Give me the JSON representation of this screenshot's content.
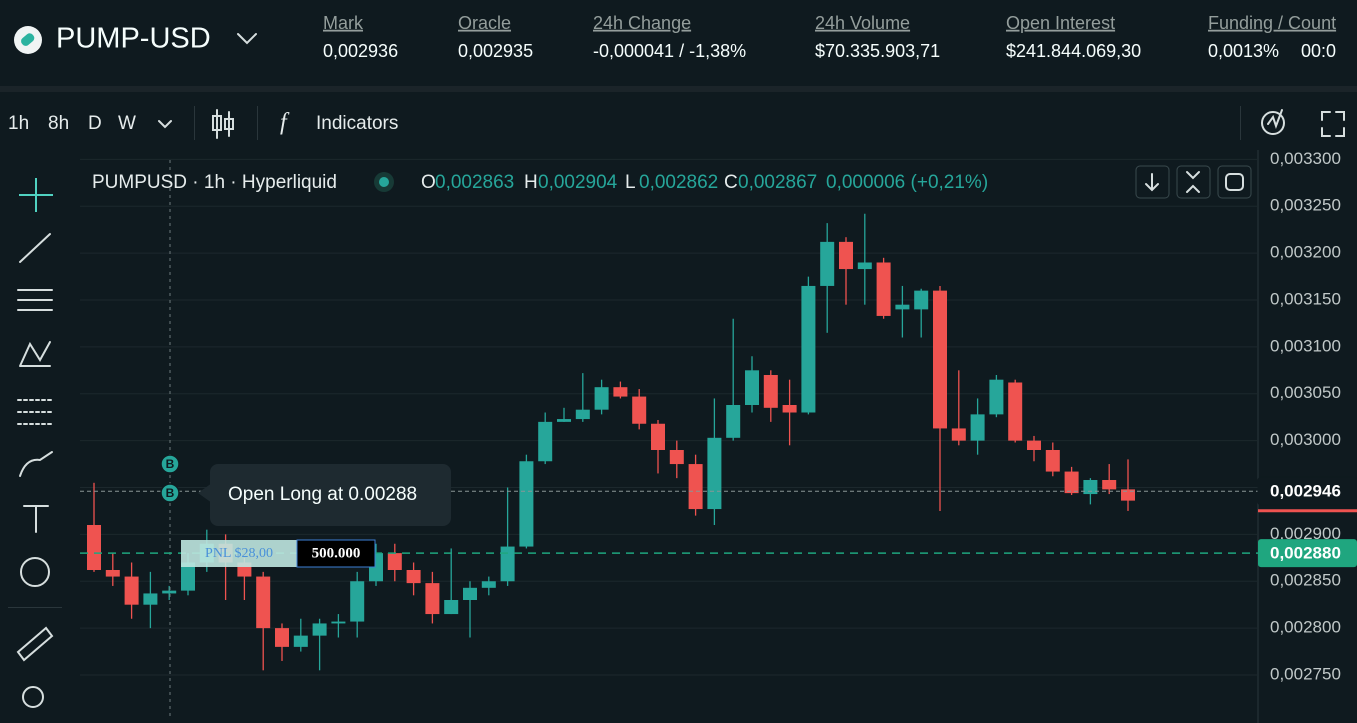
{
  "header": {
    "symbol": "PUMP-USD",
    "stats": [
      {
        "label": "Mark",
        "value": "0,002936"
      },
      {
        "label": "Oracle",
        "value": "0,002935"
      },
      {
        "label": "24h Change",
        "value": "-0,000041 / -1,38%"
      },
      {
        "label": "24h Volume",
        "value": "$70.335.903,71"
      },
      {
        "label": "Open Interest",
        "value": "$241.844.069,30"
      },
      {
        "label": "Funding / Count",
        "value": "0,0013%",
        "extra": "00:0"
      }
    ]
  },
  "toolbar": {
    "intervals": [
      "1h",
      "8h",
      "D",
      "W"
    ],
    "indicators": "Indicators"
  },
  "chart_data": {
    "type": "candlestick",
    "title": "PUMPUSD · 1h · Hyperliquid",
    "ohlc_legend": [
      {
        "key": "O",
        "value": "0,002863"
      },
      {
        "key": "H",
        "value": "0,002904"
      },
      {
        "key": "L",
        "value": "0,002862"
      },
      {
        "key": "C",
        "value": "0,002867"
      }
    ],
    "change": "0,000006 (+0,21%)",
    "open": [
      0.00291,
      0.002862,
      0.002855,
      0.002825,
      0.002837,
      0.00284,
      0.00287,
      0.00289,
      0.00287,
      0.002855,
      0.0028,
      0.00278,
      0.002792,
      0.002805,
      0.002807,
      0.00285,
      0.00288,
      0.002862,
      0.002848,
      0.002815,
      0.00283,
      0.002843,
      0.00285,
      0.002887,
      0.002978,
      0.00302,
      0.003023,
      0.003033,
      0.003057,
      0.003047,
      0.003018,
      0.00299,
      0.002975,
      0.002927,
      0.003003,
      0.003038,
      0.00307,
      0.003038,
      0.00303,
      0.003165,
      0.003212,
      0.003183,
      0.00319,
      0.00314,
      0.00314,
      0.00316,
      0.003013,
      0.003,
      0.003028,
      0.003062,
      0.003,
      0.00299,
      0.002967,
      0.002943,
      0.002958,
      0.002948
    ],
    "high": [
      0.002955,
      0.00288,
      0.00287,
      0.00286,
      0.002845,
      0.00288,
      0.002905,
      0.0029,
      0.002875,
      0.00286,
      0.002805,
      0.00281,
      0.00281,
      0.002815,
      0.00286,
      0.00289,
      0.00289,
      0.00287,
      0.00286,
      0.002885,
      0.00285,
      0.002855,
      0.00295,
      0.002985,
      0.00303,
      0.003035,
      0.003072,
      0.003065,
      0.003063,
      0.003055,
      0.003022,
      0.003,
      0.002985,
      0.003045,
      0.00313,
      0.00309,
      0.003075,
      0.003065,
      0.003175,
      0.003232,
      0.003217,
      0.003242,
      0.003195,
      0.003165,
      0.003162,
      0.003165,
      0.003075,
      0.003045,
      0.00307,
      0.003065,
      0.003005,
      0.002998,
      0.002972,
      0.00296,
      0.002975,
      0.00298
    ],
    "low": [
      0.00286,
      0.002845,
      0.00281,
      0.0028,
      0.00283,
      0.002835,
      0.00286,
      0.00283,
      0.00283,
      0.002755,
      0.002765,
      0.002775,
      0.002755,
      0.00279,
      0.00279,
      0.002845,
      0.00285,
      0.002835,
      0.002805,
      0.002815,
      0.00279,
      0.002835,
      0.002845,
      0.002885,
      0.002975,
      0.00302,
      0.00302,
      0.003028,
      0.003045,
      0.003012,
      0.002965,
      0.00296,
      0.00292,
      0.00291,
      0.003,
      0.00303,
      0.00302,
      0.002995,
      0.003028,
      0.003115,
      0.003145,
      0.003145,
      0.00313,
      0.00311,
      0.00311,
      0.002925,
      0.002995,
      0.002985,
      0.003025,
      0.002998,
      0.002978,
      0.002962,
      0.002942,
      0.002932,
      0.002943,
      0.002925
    ],
    "close": [
      0.002862,
      0.002855,
      0.002825,
      0.002837,
      0.00284,
      0.00287,
      0.00289,
      0.00287,
      0.002855,
      0.0028,
      0.00278,
      0.002792,
      0.002805,
      0.002807,
      0.00285,
      0.00288,
      0.002862,
      0.002848,
      0.002815,
      0.00283,
      0.002843,
      0.00285,
      0.002887,
      0.002978,
      0.00302,
      0.003023,
      0.003033,
      0.003057,
      0.003047,
      0.003018,
      0.00299,
      0.002975,
      0.002927,
      0.003003,
      0.003038,
      0.003075,
      0.003035,
      0.00303,
      0.003165,
      0.003212,
      0.003183,
      0.00319,
      0.003133,
      0.003145,
      0.00316,
      0.003013,
      0.003,
      0.003028,
      0.003065,
      0.003,
      0.00299,
      0.002967,
      0.002944,
      0.002958,
      0.002948,
      0.002936
    ],
    "up_color": "#26a69a",
    "down_color": "#ef5350",
    "ylim": [
      0.002702,
      0.00331
    ],
    "yticks": [
      {
        "value": 0.0033,
        "label": "0,003300"
      },
      {
        "value": 0.00325,
        "label": "0,003250"
      },
      {
        "value": 0.0032,
        "label": "0,003200"
      },
      {
        "value": 0.00315,
        "label": "0,003150"
      },
      {
        "value": 0.0031,
        "label": "0,003100"
      },
      {
        "value": 0.00305,
        "label": "0,003050"
      },
      {
        "value": 0.003,
        "label": "0,003000"
      },
      {
        "value": 0.00295,
        "label": "0,002950"
      },
      {
        "value": 0.0029,
        "label": "0,002900"
      },
      {
        "value": 0.00285,
        "label": "0,002850"
      },
      {
        "value": 0.0028,
        "label": "0,002800"
      },
      {
        "value": 0.00275,
        "label": "0,002750"
      }
    ],
    "grid": true,
    "price_lines": [
      {
        "value": 0.002946,
        "label": "0,002946",
        "color": "#8a9696"
      },
      {
        "value": 0.00288,
        "label": "0,002880",
        "color": "#1fa67f"
      }
    ],
    "annotation": "Open Long at 0.00288",
    "markers": [
      "B",
      "B"
    ],
    "position": {
      "pnl": "PNL $28,00",
      "size": "500.000"
    }
  }
}
